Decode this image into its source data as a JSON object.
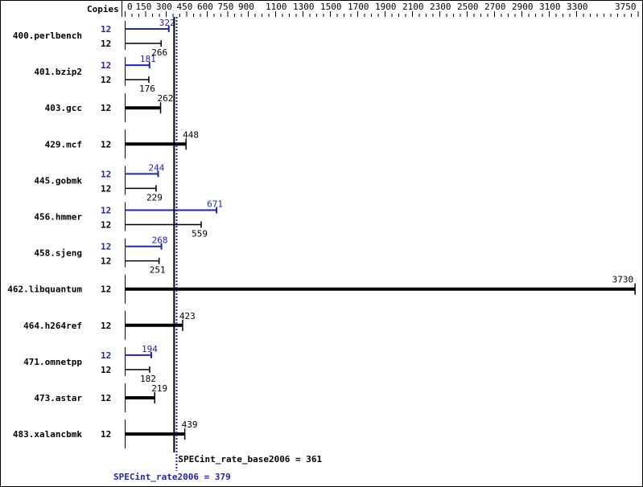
{
  "chart_data": {
    "type": "bar",
    "orientation": "horizontal",
    "copies_header": "Copies",
    "x_ticks": [
      0,
      150,
      300,
      450,
      600,
      750,
      900,
      1100,
      1300,
      1500,
      1700,
      1900,
      2100,
      2300,
      2500,
      2700,
      2900,
      3100,
      3300,
      3750
    ],
    "xlim": [
      0,
      3750
    ],
    "colors": {
      "base": "#000000",
      "peak": "#2323b4"
    },
    "benchmarks": [
      {
        "name": "400.perlbench",
        "peak_copies": "12",
        "peak": 322,
        "base_copies": "12",
        "base": 266
      },
      {
        "name": "401.bzip2",
        "peak_copies": "12",
        "peak": 181,
        "base_copies": "12",
        "base": 176
      },
      {
        "name": "403.gcc",
        "base_copies": "12",
        "base": 262
      },
      {
        "name": "429.mcf",
        "base_copies": "12",
        "base": 448
      },
      {
        "name": "445.gobmk",
        "peak_copies": "12",
        "peak": 244,
        "base_copies": "12",
        "base": 229
      },
      {
        "name": "456.hmmer",
        "peak_copies": "12",
        "peak": 671,
        "base_copies": "12",
        "base": 559
      },
      {
        "name": "458.sjeng",
        "peak_copies": "12",
        "peak": 268,
        "base_copies": "12",
        "base": 251
      },
      {
        "name": "462.libquantum",
        "base_copies": "12",
        "base": 3730
      },
      {
        "name": "464.h264ref",
        "base_copies": "12",
        "base": 423
      },
      {
        "name": "471.omnetpp",
        "peak_copies": "12",
        "peak": 194,
        "base_copies": "12",
        "base": 182
      },
      {
        "name": "473.astar",
        "base_copies": "12",
        "base": 219
      },
      {
        "name": "483.xalancbmk",
        "base_copies": "12",
        "base": 439
      }
    ],
    "base_metric": {
      "label": "SPECint_rate_base2006 = 361",
      "value": 361
    },
    "peak_metric": {
      "label": "SPECint_rate2006 = 379",
      "value": 379
    }
  }
}
